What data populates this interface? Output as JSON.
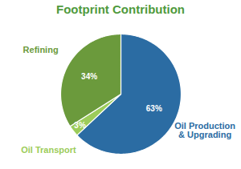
{
  "chart_data": {
    "type": "pie",
    "title": "Footprint Contribution",
    "categories": [
      "Oil Production & Upgrading",
      "Oil Transport",
      "Refining"
    ],
    "values": [
      63,
      3,
      34
    ],
    "value_labels": [
      "63%",
      "3%",
      "34%"
    ],
    "colors": [
      "#2b6ca3",
      "#9ccc5a",
      "#6b9a3c"
    ],
    "data_labels": true
  }
}
